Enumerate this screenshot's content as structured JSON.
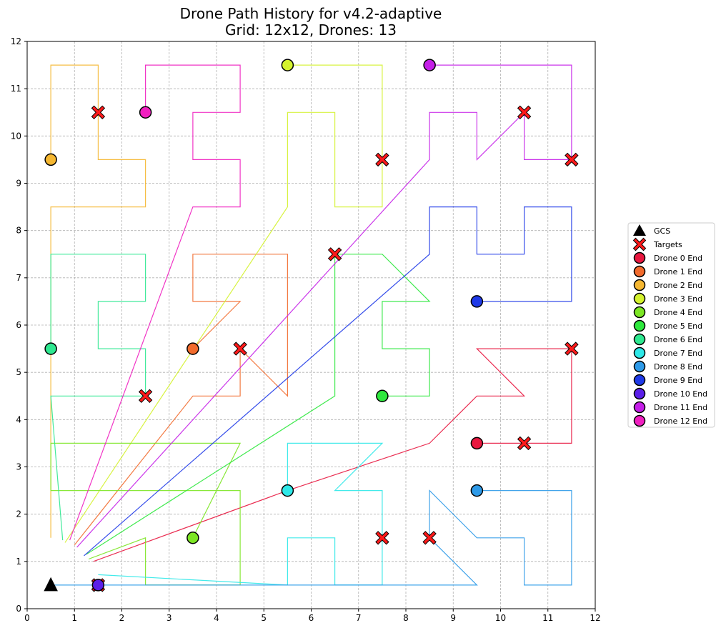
{
  "chart_data": {
    "type": "scatter",
    "title_line1": "Drone Path History for v4.2-adaptive",
    "title_line2": "Grid: 12x12, Drones: 13",
    "xlabel": "",
    "ylabel": "",
    "xlim": [
      0,
      12
    ],
    "ylim": [
      0,
      12
    ],
    "xticks": [
      "0",
      "1",
      "2",
      "3",
      "4",
      "5",
      "6",
      "7",
      "8",
      "9",
      "10",
      "11",
      "12"
    ],
    "yticks": [
      "0",
      "1",
      "2",
      "3",
      "4",
      "5",
      "6",
      "7",
      "8",
      "9",
      "10",
      "11",
      "12"
    ],
    "grid": true,
    "legend_position": "right",
    "gcs": {
      "label": "GCS",
      "x": 0.5,
      "y": 0.5
    },
    "targets_label": "Targets",
    "targets": [
      [
        1.5,
        10.5
      ],
      [
        7.5,
        9.5
      ],
      [
        10.5,
        10.5
      ],
      [
        11.5,
        9.5
      ],
      [
        6.5,
        7.5
      ],
      [
        4.5,
        5.5
      ],
      [
        11.5,
        5.5
      ],
      [
        2.5,
        4.5
      ],
      [
        10.5,
        3.5
      ],
      [
        7.5,
        1.5
      ],
      [
        8.5,
        1.5
      ],
      [
        1.5,
        0.5
      ]
    ],
    "drones": [
      {
        "label": "Drone 0 End",
        "color": "#e8173f",
        "end": [
          9.5,
          3.5
        ],
        "path": [
          [
            1.4,
            1.0
          ],
          [
            5.5,
            2.5
          ],
          [
            8.5,
            3.5
          ],
          [
            9.5,
            4.5
          ],
          [
            10.5,
            4.5
          ],
          [
            9.5,
            5.5
          ],
          [
            11.5,
            5.5
          ],
          [
            11.5,
            3.5
          ],
          [
            10.5,
            3.5
          ],
          [
            9.5,
            3.5
          ]
        ]
      },
      {
        "label": "Drone 1 End",
        "color": "#f26b2d",
        "end": [
          3.5,
          5.5
        ],
        "path": [
          [
            1.0,
            1.35
          ],
          [
            3.5,
            4.5
          ],
          [
            4.5,
            4.5
          ],
          [
            4.5,
            5.5
          ],
          [
            5.5,
            4.5
          ],
          [
            5.5,
            7.5
          ],
          [
            3.5,
            7.5
          ],
          [
            3.5,
            6.5
          ],
          [
            4.5,
            6.5
          ],
          [
            3.5,
            5.5
          ]
        ]
      },
      {
        "label": "Drone 2 End",
        "color": "#f5b731",
        "end": [
          0.5,
          9.5
        ],
        "path": [
          [
            0.5,
            1.5
          ],
          [
            0.5,
            8.5
          ],
          [
            2.5,
            8.5
          ],
          [
            2.5,
            9.5
          ],
          [
            1.5,
            9.5
          ],
          [
            1.5,
            11.5
          ],
          [
            0.5,
            11.5
          ],
          [
            0.5,
            9.5
          ]
        ]
      },
      {
        "label": "Drone 3 End",
        "color": "#d4f22e",
        "end": [
          5.5,
          11.5
        ],
        "path": [
          [
            0.8,
            1.4
          ],
          [
            5.5,
            8.5
          ],
          [
            5.5,
            10.5
          ],
          [
            6.5,
            10.5
          ],
          [
            6.5,
            8.5
          ],
          [
            7.5,
            8.5
          ],
          [
            7.5,
            11.5
          ],
          [
            5.5,
            11.5
          ]
        ]
      },
      {
        "label": "Drone 4 End",
        "color": "#7ce624",
        "end": [
          3.5,
          1.5
        ],
        "path": [
          [
            1.3,
            1.05
          ],
          [
            2.5,
            1.5
          ],
          [
            2.5,
            0.5
          ],
          [
            4.5,
            0.5
          ],
          [
            4.5,
            2.5
          ],
          [
            0.5,
            2.5
          ],
          [
            0.5,
            3.5
          ],
          [
            4.5,
            3.5
          ],
          [
            3.5,
            1.5
          ]
        ]
      },
      {
        "label": "Drone 5 End",
        "color": "#2ee83d",
        "end": [
          7.5,
          4.5
        ],
        "path": [
          [
            1.25,
            1.15
          ],
          [
            6.5,
            4.5
          ],
          [
            6.5,
            7.5
          ],
          [
            7.5,
            7.5
          ],
          [
            8.5,
            6.5
          ],
          [
            7.5,
            6.5
          ],
          [
            7.5,
            5.5
          ],
          [
            8.5,
            5.5
          ],
          [
            8.5,
            4.5
          ],
          [
            7.5,
            4.5
          ]
        ]
      },
      {
        "label": "Drone 6 End",
        "color": "#2ee890",
        "end": [
          0.5,
          5.5
        ],
        "path": [
          [
            0.75,
            1.45
          ],
          [
            0.5,
            4.5
          ],
          [
            2.5,
            4.5
          ],
          [
            2.5,
            5.5
          ],
          [
            1.5,
            5.5
          ],
          [
            1.5,
            6.5
          ],
          [
            2.5,
            6.5
          ],
          [
            2.5,
            7.5
          ],
          [
            0.5,
            7.5
          ],
          [
            0.5,
            5.5
          ]
        ]
      },
      {
        "label": "Drone 7 End",
        "color": "#2ee8e8",
        "end": [
          5.5,
          2.5
        ],
        "path": [
          [
            1.5,
            0.72
          ],
          [
            5.5,
            0.5
          ],
          [
            5.5,
            1.5
          ],
          [
            6.5,
            1.5
          ],
          [
            6.5,
            0.5
          ],
          [
            7.5,
            0.5
          ],
          [
            7.5,
            2.5
          ],
          [
            6.5,
            2.5
          ],
          [
            7.5,
            3.5
          ],
          [
            5.5,
            3.5
          ],
          [
            5.5,
            2.5
          ]
        ]
      },
      {
        "label": "Drone 8 End",
        "color": "#2e9ae8",
        "end": [
          9.5,
          2.5
        ],
        "path": [
          [
            0.5,
            0.5
          ],
          [
            9.5,
            0.5
          ],
          [
            8.5,
            1.5
          ],
          [
            8.5,
            2.5
          ],
          [
            9.5,
            1.5
          ],
          [
            10.5,
            1.5
          ],
          [
            10.5,
            0.5
          ],
          [
            11.5,
            0.5
          ],
          [
            11.5,
            2.5
          ],
          [
            9.5,
            2.5
          ]
        ]
      },
      {
        "label": "Drone 9 End",
        "color": "#1f3ae8",
        "end": [
          9.5,
          6.5
        ],
        "path": [
          [
            1.2,
            1.12
          ],
          [
            8.5,
            7.5
          ],
          [
            8.5,
            8.5
          ],
          [
            9.5,
            8.5
          ],
          [
            9.5,
            7.5
          ],
          [
            10.5,
            7.5
          ],
          [
            10.5,
            8.5
          ],
          [
            11.5,
            8.5
          ],
          [
            11.5,
            6.5
          ],
          [
            9.5,
            6.5
          ]
        ]
      },
      {
        "label": "Drone 10 End",
        "color": "#5b1fe8",
        "end": [
          1.5,
          0.5
        ],
        "path": []
      },
      {
        "label": "Drone 11 End",
        "color": "#c51fe8",
        "end": [
          8.5,
          11.5
        ],
        "path": [
          [
            1.05,
            1.3
          ],
          [
            8.5,
            9.5
          ],
          [
            8.5,
            10.5
          ],
          [
            9.5,
            10.5
          ],
          [
            9.5,
            9.5
          ],
          [
            10.5,
            10.5
          ],
          [
            10.5,
            9.5
          ],
          [
            11.5,
            9.5
          ],
          [
            11.5,
            11.5
          ],
          [
            8.5,
            11.5
          ]
        ]
      },
      {
        "label": "Drone 12 End",
        "color": "#f01fc0",
        "end": [
          2.5,
          10.5
        ],
        "path": [
          [
            0.9,
            1.45
          ],
          [
            3.5,
            8.5
          ],
          [
            4.5,
            8.5
          ],
          [
            4.5,
            9.5
          ],
          [
            3.5,
            9.5
          ],
          [
            3.5,
            10.5
          ],
          [
            4.5,
            10.5
          ],
          [
            4.5,
            11.5
          ],
          [
            2.5,
            11.5
          ],
          [
            2.5,
            10.5
          ]
        ]
      }
    ]
  }
}
